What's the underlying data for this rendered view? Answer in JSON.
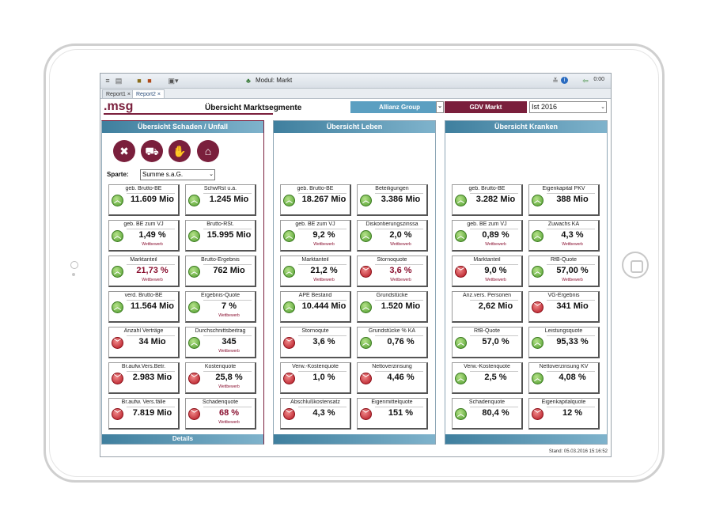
{
  "topbar": {
    "module_title": "Modul: Markt",
    "time": "0:00",
    "icons": [
      "menu-icon",
      "print-icon",
      "report-icon",
      "cube-icon",
      "export-icon",
      "collapse-icon",
      "info-icon",
      "exit-icon"
    ]
  },
  "tabs": [
    {
      "label": "Report1"
    },
    {
      "label": "Report2"
    }
  ],
  "header": {
    "logo": ".msg",
    "title": "Übersicht Marktsegmente",
    "company_select": "Allianz Group",
    "gdv_button": "GDV Markt",
    "year_select": "Ist 2016"
  },
  "colors": {
    "brand": "#7a1f3c",
    "accent": "#5b9fc1",
    "up": "#4c9a2a",
    "down": "#b3131f"
  },
  "panels": {
    "schaden": {
      "title": "Übersicht  Schaden / Unfall",
      "footer": "Details",
      "category_icons": [
        "tools-icon",
        "truck-icon",
        "handshake-icon",
        "home-icon"
      ],
      "sparte_label": "Sparte:",
      "sparte_value": "Summe s.a.G.",
      "cards": [
        {
          "label": "geb. Brutto-BE",
          "value": "11.609 Mio",
          "trend": "up",
          "sub": ""
        },
        {
          "label": "SchwRst u.a.",
          "value": "1.245 Mio",
          "trend": "up",
          "sub": ""
        },
        {
          "label": "geb. BE zum VJ",
          "value": "1,49 %",
          "trend": "up",
          "sub": "Wettbewerb"
        },
        {
          "label": "Brutto-RSt.",
          "value": "15.995 Mio",
          "trend": "up",
          "sub": ""
        },
        {
          "label": "Marktanteil",
          "value": "21,73 %",
          "trend": "up",
          "sub": "Wettbewerb",
          "red": true
        },
        {
          "label": "Brutto-Ergebnis",
          "value": "762 Mio",
          "trend": "up",
          "sub": ""
        },
        {
          "label": "verd. Brutto-BE",
          "value": "11.564 Mio",
          "trend": "up",
          "sub": ""
        },
        {
          "label": "Ergebnis-Quote",
          "value": "7 %",
          "trend": "up",
          "sub": "Wettbewerb"
        },
        {
          "label": "Anzahl Verträge",
          "value": "34 Mio",
          "trend": "down",
          "sub": ""
        },
        {
          "label": "Durchschnittsbeitrag",
          "value": "345",
          "trend": "up",
          "sub": "Wettbewerb"
        },
        {
          "label": "Br.aufw.Vers.Betr.",
          "value": "2.983 Mio",
          "trend": "down",
          "sub": ""
        },
        {
          "label": "Kostenquote",
          "value": "25,8 %",
          "trend": "down",
          "sub": "Wettbewerb"
        },
        {
          "label": "Br.aufw. Vers.fälle",
          "value": "7.819 Mio",
          "trend": "down",
          "sub": ""
        },
        {
          "label": "Schadenquote",
          "value": "68 %",
          "trend": "down",
          "sub": "Wettbewerb",
          "red": true
        }
      ]
    },
    "leben": {
      "title": "Übersicht Leben",
      "cards": [
        {
          "label": "geb. Brutto-BE",
          "value": "18.267 Mio",
          "trend": "up",
          "sub": ""
        },
        {
          "label": "Beteiligungen",
          "value": "3.386 Mio",
          "trend": "up",
          "sub": ""
        },
        {
          "label": "geb. BE zum VJ",
          "value": "9,2 %",
          "trend": "up",
          "sub": "Wettbewerb"
        },
        {
          "label": "Diskontierungszinssa",
          "value": "2,0 %",
          "trend": "up",
          "sub": "Wettbewerb"
        },
        {
          "label": "Marktanteil",
          "value": "21,2 %",
          "trend": "up",
          "sub": "Wettbewerb"
        },
        {
          "label": "Stornoquote",
          "value": "3,6 %",
          "trend": "down",
          "sub": "Wettbewerb",
          "red": true
        },
        {
          "label": "APE Bestand",
          "value": "10.444 Mio",
          "trend": "up",
          "sub": ""
        },
        {
          "label": "Grundstücke",
          "value": "1.520 Mio",
          "trend": "up",
          "sub": ""
        },
        {
          "label": "Stornoqute",
          "value": "3,6 %",
          "trend": "down",
          "sub": ""
        },
        {
          "label": "Grundstücke % KA",
          "value": "0,76 %",
          "trend": "up",
          "sub": ""
        },
        {
          "label": "Verw.-Kostenquote",
          "value": "1,0 %",
          "trend": "down",
          "sub": ""
        },
        {
          "label": "Nettoverzinsung",
          "value": "4,46 %",
          "trend": "down",
          "sub": ""
        },
        {
          "label": "Abschlußkostensatz",
          "value": "4,3 %",
          "trend": "down",
          "sub": ""
        },
        {
          "label": "Eigenmittelquote",
          "value": "151 %",
          "trend": "down",
          "sub": ""
        }
      ]
    },
    "kranken": {
      "title": "Übersicht Kranken",
      "cards": [
        {
          "label": "geb. Brutto-BE",
          "value": "3.282 Mio",
          "trend": "up",
          "sub": ""
        },
        {
          "label": "Eigenkapital PKV",
          "value": "388 Mio",
          "trend": "up",
          "sub": ""
        },
        {
          "label": "geb. BE zum VJ",
          "value": "0,89 %",
          "trend": "up",
          "sub": "Wettbewerb"
        },
        {
          "label": "Zuwachs KA",
          "value": "4,3 %",
          "trend": "up",
          "sub": "Wettbewerb"
        },
        {
          "label": "Marktanteil",
          "value": "9,0 %",
          "trend": "down",
          "sub": "Wettbewerb"
        },
        {
          "label": "RfB-Quote",
          "value": "57,00 %",
          "trend": "up",
          "sub": "Wettbewerb"
        },
        {
          "label": "Anz.vers. Personen",
          "value": "2,62 Mio",
          "trend": "none",
          "sub": ""
        },
        {
          "label": "VG-Ergebnis",
          "value": "341 Mio",
          "trend": "down",
          "sub": ""
        },
        {
          "label": "RfB-Quote",
          "value": "57,0 %",
          "trend": "up",
          "sub": ""
        },
        {
          "label": "Leistungsquote",
          "value": "95,33 %",
          "trend": "up",
          "sub": ""
        },
        {
          "label": "Verw.-Kostenquote",
          "value": "2,5 %",
          "trend": "up",
          "sub": ""
        },
        {
          "label": "Nettoverzinsung KV",
          "value": "4,08 %",
          "trend": "up",
          "sub": ""
        },
        {
          "label": "Schadenquote",
          "value": "80,4 %",
          "trend": "up",
          "sub": ""
        },
        {
          "label": "Eigenkapitalquote",
          "value": "12 %",
          "trend": "down",
          "sub": ""
        }
      ]
    }
  },
  "status": "Stand: 05.03.2016 15:16:52"
}
